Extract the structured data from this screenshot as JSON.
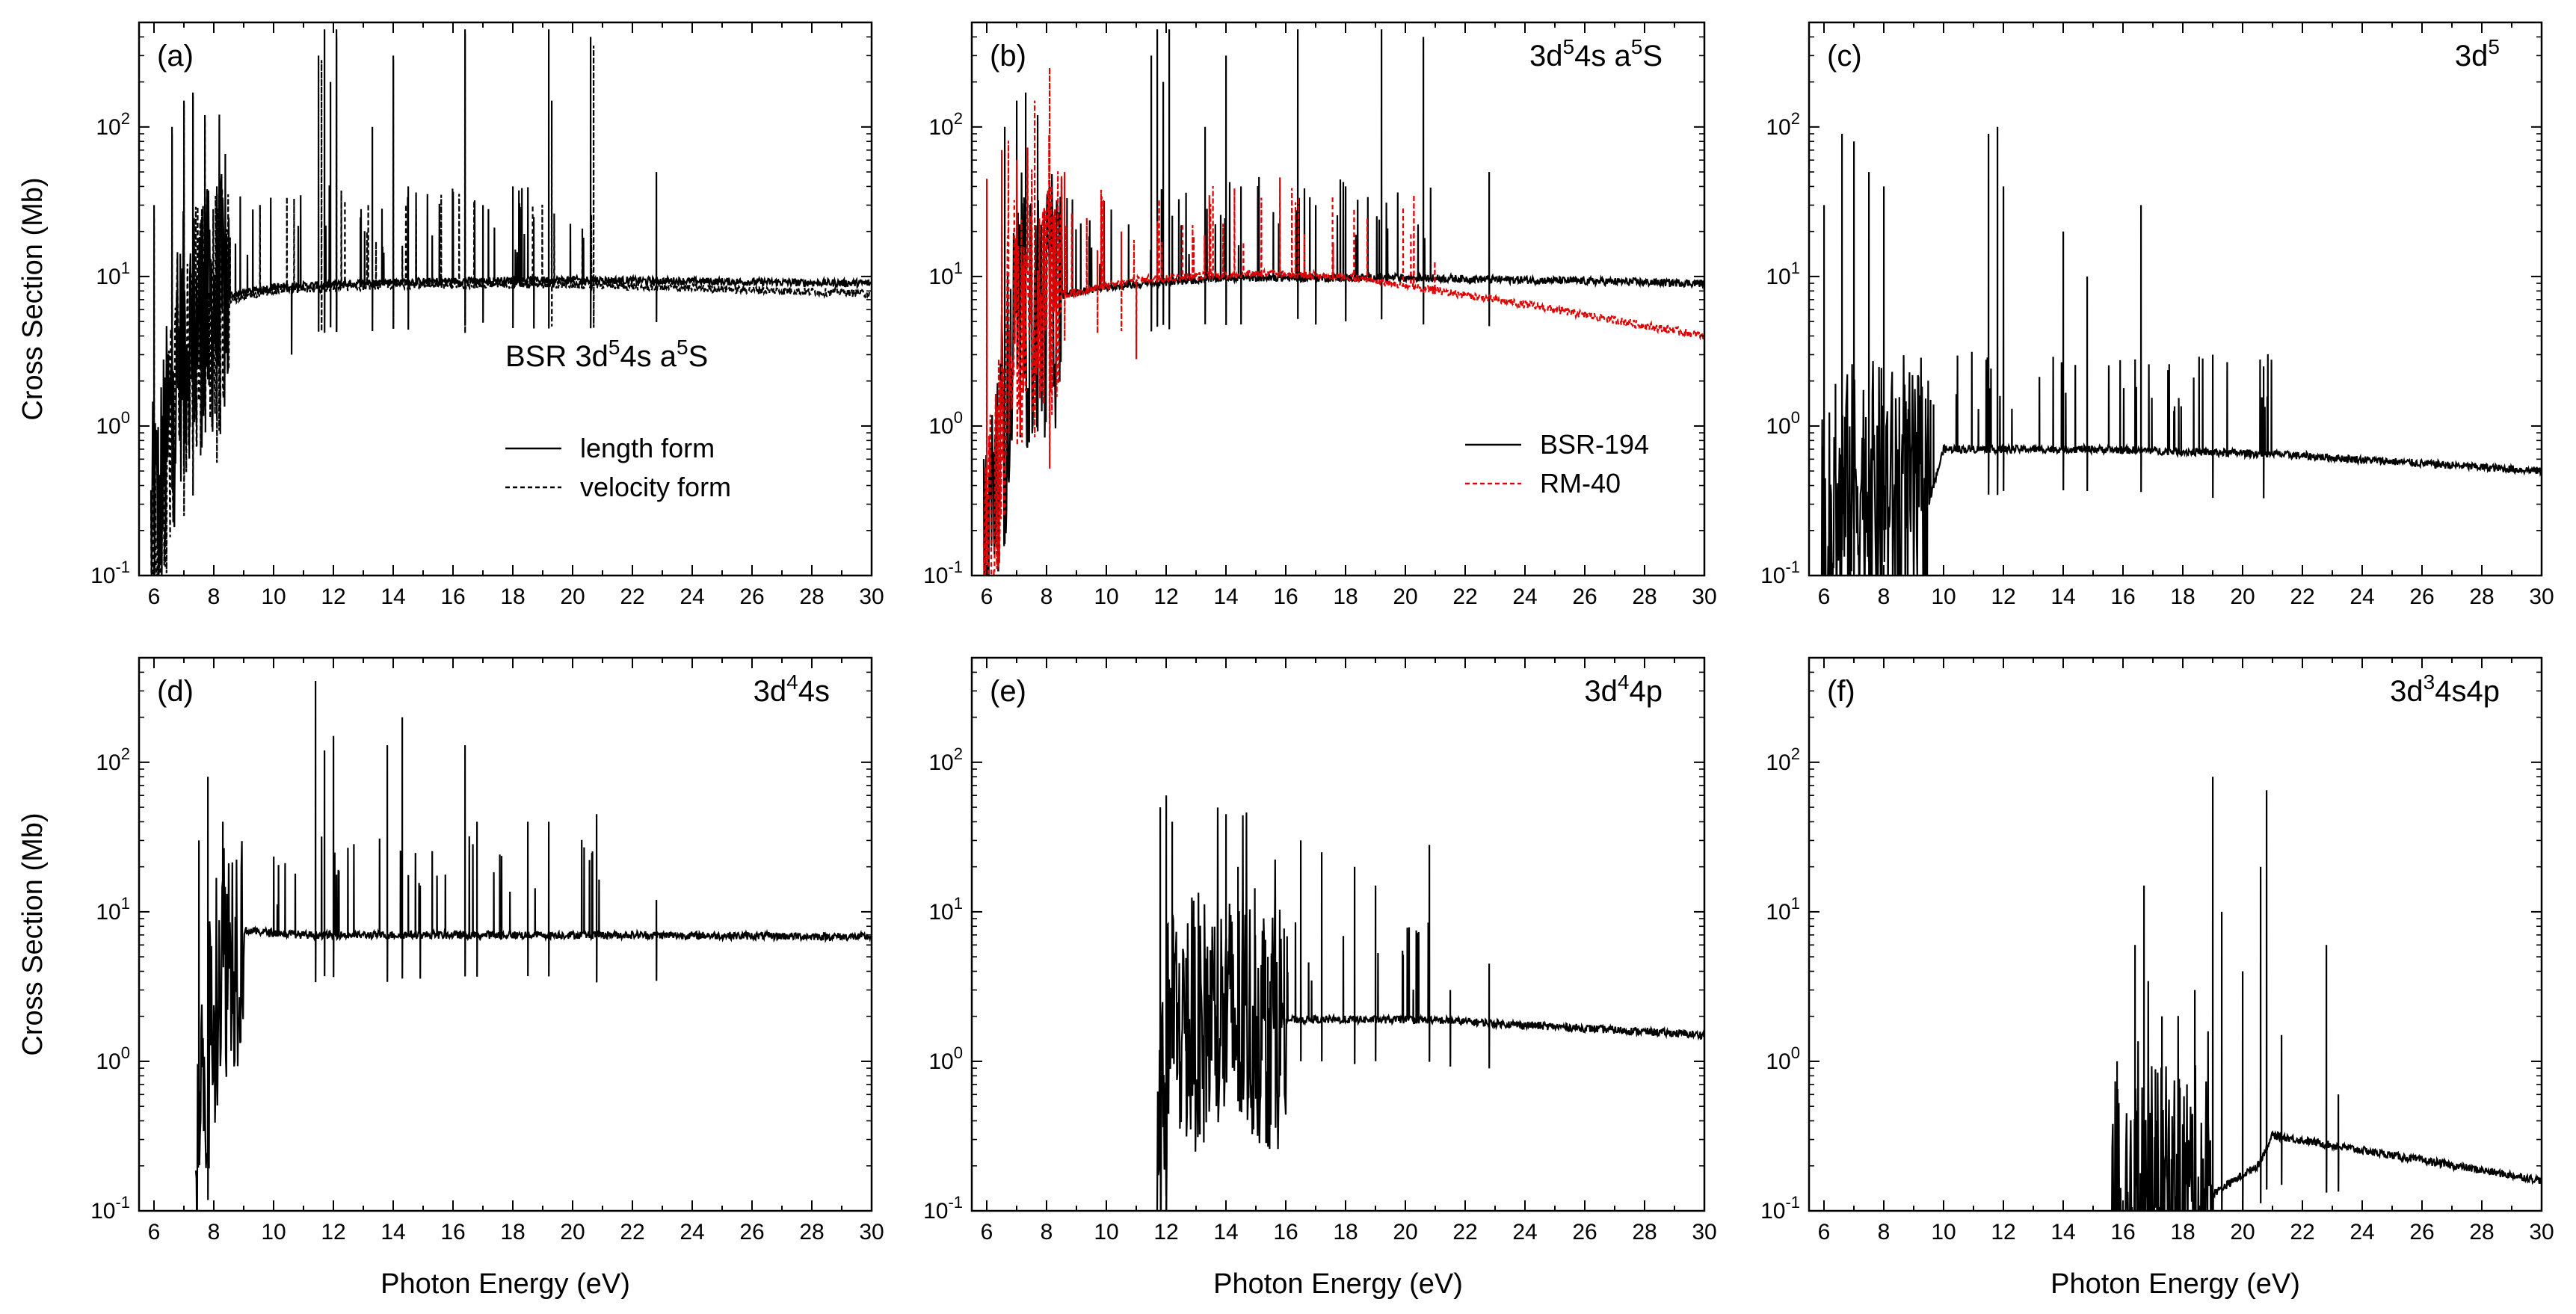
{
  "chart_data": [
    {
      "panel": "(a)",
      "type": "line",
      "title": "BSR 3d⁵4s a⁵S",
      "title_parts": {
        "lead": "BSR  3d",
        "sup1": "5",
        "mid": "4s  a",
        "sup2": "5",
        "tail": "S"
      },
      "xlabel": "",
      "ylabel": "Cross Section (Mb)",
      "xlim": [
        5.5,
        30
      ],
      "ylim": [
        0.1,
        500
      ],
      "yscale": "log",
      "x_ticks": [
        "6",
        "8",
        "10",
        "12",
        "14",
        "16",
        "18",
        "20",
        "22",
        "24",
        "26",
        "28",
        "30"
      ],
      "series": [
        {
          "name": "length form",
          "style": "solid",
          "color": "#000000",
          "threshold": 5.9,
          "background": [
            [
              6.0,
              0.2
            ],
            [
              7.0,
              4
            ],
            [
              8.5,
              7.5
            ],
            [
              10,
              8.5
            ],
            [
              14,
              9.2
            ],
            [
              20,
              9.5
            ],
            [
              30,
              9
            ]
          ],
          "resonances": [
            [
              6.0,
              30
            ],
            [
              6.6,
              100
            ],
            [
              7.0,
              150
            ],
            [
              7.3,
              170
            ],
            [
              7.7,
              120
            ],
            [
              8.1,
              40
            ],
            [
              10.6,
              3
            ],
            [
              11.5,
              300
            ],
            [
              11.7,
              450
            ],
            [
              11.9,
              200
            ],
            [
              12.1,
              450
            ],
            [
              13.3,
              100
            ],
            [
              14.0,
              300
            ],
            [
              14.5,
              40
            ],
            [
              16.4,
              450
            ],
            [
              17.0,
              30
            ],
            [
              18.0,
              40
            ],
            [
              18.7,
              25
            ],
            [
              19.2,
              450
            ],
            [
              20.6,
              400
            ],
            [
              22.8,
              50
            ]
          ]
        },
        {
          "name": "velocity form",
          "style": "dashed",
          "color": "#000000",
          "threshold": 5.9,
          "background": [
            [
              6.0,
              0.2
            ],
            [
              7.0,
              3.5
            ],
            [
              8.5,
              7
            ],
            [
              10,
              8
            ],
            [
              14,
              8.8
            ],
            [
              20,
              8.8
            ],
            [
              30,
              7.7
            ]
          ],
          "resonances": [
            [
              6.0,
              25
            ],
            [
              6.6,
              90
            ],
            [
              7.0,
              140
            ],
            [
              7.3,
              160
            ],
            [
              7.7,
              110
            ],
            [
              8.1,
              35
            ],
            [
              11.6,
              280
            ],
            [
              12.1,
              400
            ],
            [
              14.0,
              280
            ],
            [
              16.4,
              420
            ],
            [
              19.3,
              150
            ],
            [
              20.7,
              350
            ]
          ]
        }
      ],
      "legend": [
        "length form",
        "velocity form"
      ]
    },
    {
      "panel": "(b)",
      "type": "line",
      "title": "3d⁵4s a⁵S",
      "title_parts": {
        "lead": "3d",
        "sup1": "5",
        "mid": "4s  a",
        "sup2": "5",
        "tail": "S"
      },
      "xlabel": "",
      "ylabel": "",
      "xlim": [
        5.5,
        30
      ],
      "ylim": [
        0.1,
        500
      ],
      "yscale": "log",
      "x_ticks": [
        "6",
        "8",
        "10",
        "12",
        "14",
        "16",
        "18",
        "20",
        "22",
        "24",
        "26",
        "28",
        "30"
      ],
      "series": [
        {
          "name": "BSR-194",
          "style": "solid",
          "color": "#000000",
          "threshold": 5.9,
          "background": [
            [
              6.0,
              0.2
            ],
            [
              7.0,
              4
            ],
            [
              8.5,
              7.5
            ],
            [
              10,
              8.5
            ],
            [
              14,
              9.8
            ],
            [
              20,
              9.8
            ],
            [
              30,
              9
            ]
          ],
          "resonances": [
            [
              6.6,
              100
            ],
            [
              7.0,
              150
            ],
            [
              7.3,
              170
            ],
            [
              7.7,
              120
            ],
            [
              8.1,
              40
            ],
            [
              11.5,
              300
            ],
            [
              11.7,
              450
            ],
            [
              11.9,
              200
            ],
            [
              12.1,
              450
            ],
            [
              13.3,
              100
            ],
            [
              14.0,
              300
            ],
            [
              14.5,
              40
            ],
            [
              16.4,
              450
            ],
            [
              17.0,
              30
            ],
            [
              18.0,
              40
            ],
            [
              19.2,
              450
            ],
            [
              20.6,
              400
            ],
            [
              22.8,
              50
            ]
          ]
        },
        {
          "name": "RM-40",
          "style": "dashed",
          "color": "#e00000",
          "threshold": 5.9,
          "background": [
            [
              6.0,
              0.1
            ],
            [
              6.8,
              5
            ],
            [
              8.5,
              7.5
            ],
            [
              11,
              9.5
            ],
            [
              15,
              10.5
            ],
            [
              18,
              10
            ],
            [
              24,
              6.5
            ],
            [
              30,
              4
            ]
          ],
          "resonances": [
            [
              6.0,
              45
            ],
            [
              6.5,
              70
            ],
            [
              7.0,
              60
            ],
            [
              7.6,
              150
            ],
            [
              8.1,
              250
            ],
            [
              8.6,
              50
            ],
            [
              9.7,
              15
            ],
            [
              10.5,
              20
            ],
            [
              11.0,
              2.8
            ]
          ]
        }
      ],
      "legend": [
        "BSR-194",
        "RM-40"
      ]
    },
    {
      "panel": "(c)",
      "type": "line",
      "title": "3d⁵",
      "title_parts": {
        "lead": "3d",
        "sup1": "5",
        "mid": "",
        "sup2": "",
        "tail": ""
      },
      "xlabel": "",
      "ylabel": "",
      "xlim": [
        5.5,
        30
      ],
      "ylim": [
        0.1,
        500
      ],
      "yscale": "log",
      "x_ticks": [
        "6",
        "8",
        "10",
        "12",
        "14",
        "16",
        "18",
        "20",
        "22",
        "24",
        "26",
        "28",
        "30"
      ],
      "series": [
        {
          "name": "3d5",
          "style": "solid",
          "color": "#000000",
          "threshold": 5.9,
          "background": [
            [
              6.0,
              0.15
            ],
            [
              7.0,
              0.4
            ],
            [
              9.5,
              0.3
            ],
            [
              10,
              0.7
            ],
            [
              15,
              0.7
            ],
            [
              21,
              0.65
            ],
            [
              30,
              0.5
            ]
          ],
          "resonances": [
            [
              6.0,
              30
            ],
            [
              6.6,
              90
            ],
            [
              7.0,
              80
            ],
            [
              7.5,
              50
            ],
            [
              8.0,
              40
            ],
            [
              11.5,
              90
            ],
            [
              11.8,
              100
            ],
            [
              12.0,
              40
            ],
            [
              14.0,
              20
            ],
            [
              14.8,
              10
            ],
            [
              16.6,
              30
            ],
            [
              19.0,
              3
            ],
            [
              20.7,
              2.5
            ]
          ]
        }
      ],
      "legend": []
    },
    {
      "panel": "(d)",
      "type": "line",
      "title": "3d⁴4s",
      "title_parts": {
        "lead": "3d",
        "sup1": "4",
        "mid": "4s",
        "sup2": "",
        "tail": ""
      },
      "xlabel": "Photon Energy (eV)",
      "ylabel": "Cross Section (Mb)",
      "xlim": [
        5.5,
        30
      ],
      "ylim": [
        0.1,
        500
      ],
      "yscale": "log",
      "x_ticks": [
        "6",
        "8",
        "10",
        "12",
        "14",
        "16",
        "18",
        "20",
        "22",
        "24",
        "26",
        "28",
        "30"
      ],
      "series": [
        {
          "name": "3d4 4s",
          "style": "solid",
          "color": "#000000",
          "threshold": 7.4,
          "background": [
            [
              7.4,
              0.2
            ],
            [
              8.2,
              5
            ],
            [
              9,
              7.5
            ],
            [
              11,
              7
            ],
            [
              15,
              7
            ],
            [
              22,
              7
            ],
            [
              30,
              6.8
            ]
          ],
          "resonances": [
            [
              7.5,
              30
            ],
            [
              7.8,
              80
            ],
            [
              8.3,
              40
            ],
            [
              11.4,
              350
            ],
            [
              11.7,
              120
            ],
            [
              12.0,
              150
            ],
            [
              13.8,
              130
            ],
            [
              14.3,
              200
            ],
            [
              14.9,
              15
            ],
            [
              16.4,
              130
            ],
            [
              16.8,
              40
            ],
            [
              18.5,
              40
            ],
            [
              19.2,
              40
            ],
            [
              20.8,
              45
            ],
            [
              22.8,
              12
            ]
          ]
        }
      ],
      "legend": []
    },
    {
      "panel": "(e)",
      "type": "line",
      "title": "3d⁴4p",
      "title_parts": {
        "lead": "3d",
        "sup1": "4",
        "mid": "4p",
        "sup2": "",
        "tail": ""
      },
      "xlabel": "Photon Energy (eV)",
      "ylabel": "",
      "xlim": [
        5.5,
        30
      ],
      "ylim": [
        0.1,
        500
      ],
      "yscale": "log",
      "x_ticks": [
        "6",
        "8",
        "10",
        "12",
        "14",
        "16",
        "18",
        "20",
        "22",
        "24",
        "26",
        "28",
        "30"
      ],
      "series": [
        {
          "name": "3d4 4p",
          "style": "solid",
          "color": "#000000",
          "threshold": 11.7,
          "background": [
            [
              11.7,
              0.1
            ],
            [
              12.1,
              1.8
            ],
            [
              16,
              1.9
            ],
            [
              20.8,
              1.9
            ],
            [
              30,
              1.5
            ]
          ],
          "resonances": [
            [
              11.8,
              50
            ],
            [
              12.0,
              60
            ],
            [
              12.2,
              40
            ],
            [
              14.0,
              45
            ],
            [
              14.4,
              20
            ],
            [
              15.4,
              5
            ],
            [
              16.5,
              30
            ],
            [
              17.2,
              25
            ],
            [
              18.3,
              20
            ],
            [
              19.0,
              15
            ],
            [
              20.8,
              28
            ],
            [
              21.5,
              3
            ],
            [
              22.8,
              4.5
            ]
          ]
        }
      ],
      "legend": []
    },
    {
      "panel": "(f)",
      "type": "line",
      "title": "3d³4s4p",
      "title_parts": {
        "lead": "3d",
        "sup1": "3",
        "mid": "4s4p",
        "sup2": "",
        "tail": ""
      },
      "xlabel": "Photon Energy (eV)",
      "ylabel": "",
      "xlim": [
        5.5,
        30
      ],
      "ylim": [
        0.1,
        500
      ],
      "yscale": "log",
      "x_ticks": [
        "6",
        "8",
        "10",
        "12",
        "14",
        "16",
        "18",
        "20",
        "22",
        "24",
        "26",
        "28",
        "30"
      ],
      "series": [
        {
          "name": "3d3 4s4p",
          "style": "solid",
          "color": "#000000",
          "threshold": 15.6,
          "background": [
            [
              15.6,
              0.1
            ],
            [
              17,
              0.13
            ],
            [
              19,
              0.13
            ],
            [
              20.5,
              0.2
            ],
            [
              21,
              0.32
            ],
            [
              30,
              0.16
            ]
          ],
          "resonances": [
            [
              15.8,
              1
            ],
            [
              16.4,
              6
            ],
            [
              16.7,
              15
            ],
            [
              17.3,
              2
            ],
            [
              18.4,
              3
            ],
            [
              19.0,
              80
            ],
            [
              19.3,
              10
            ],
            [
              20.0,
              4
            ],
            [
              20.6,
              20
            ],
            [
              20.8,
              65
            ],
            [
              21.3,
              1.5
            ],
            [
              22.8,
              6
            ],
            [
              23.2,
              0.6
            ]
          ]
        }
      ],
      "legend": []
    }
  ]
}
